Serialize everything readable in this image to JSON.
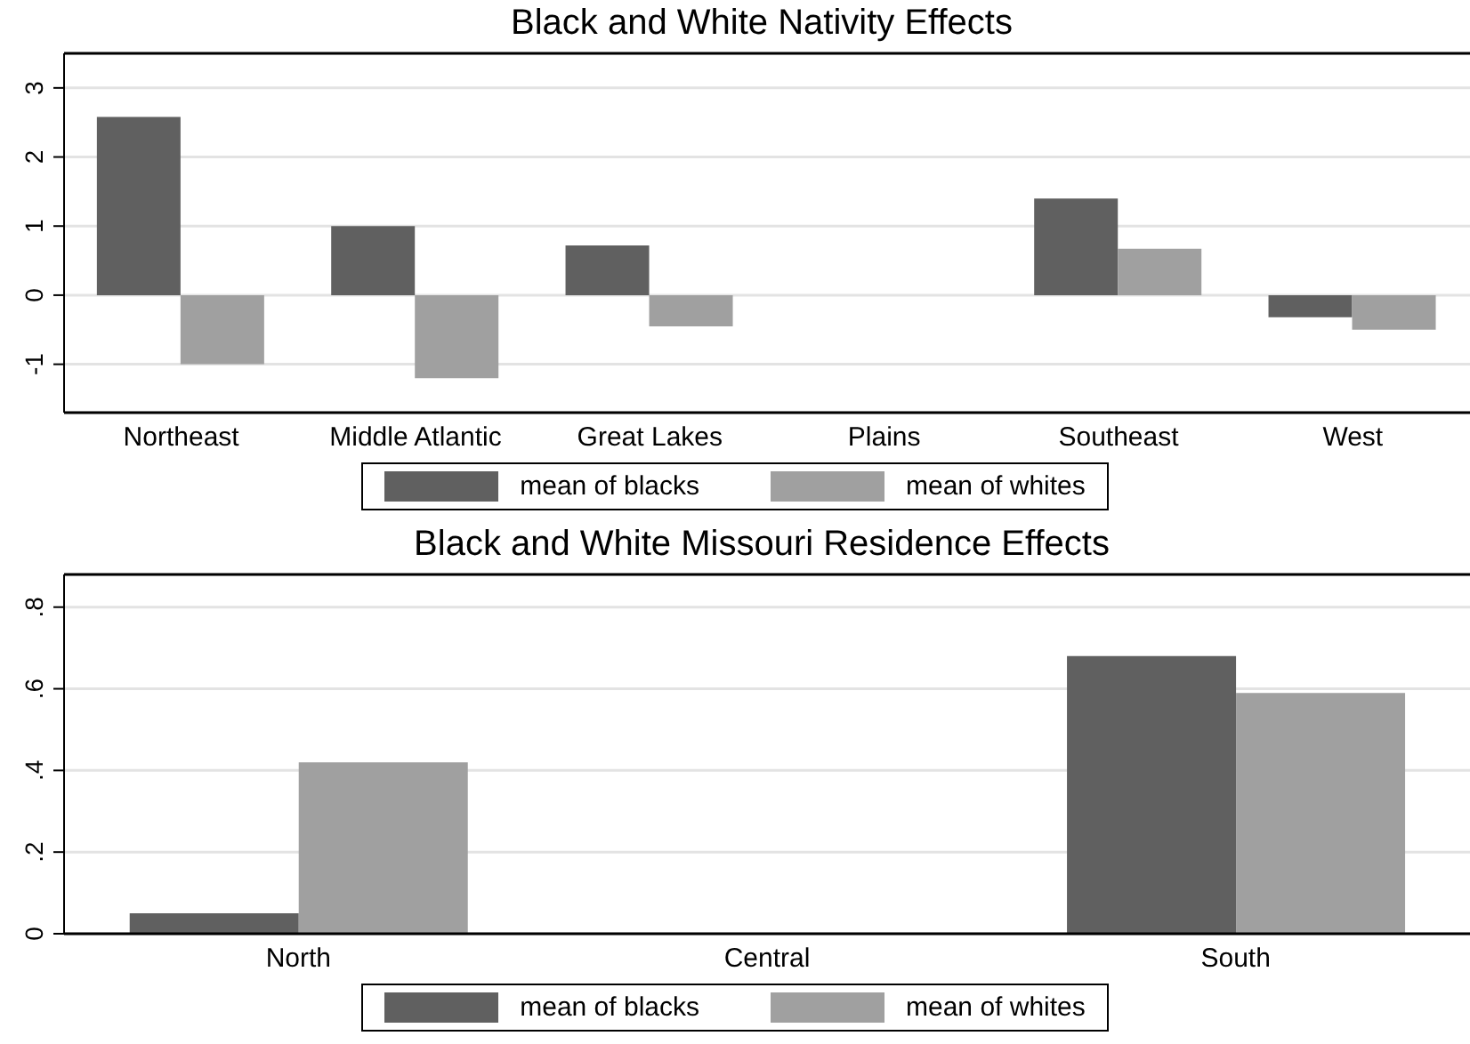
{
  "chart_data": [
    {
      "type": "bar",
      "title": "Black and White Nativity Effects",
      "categories": [
        "Northeast",
        "Middle Atlantic",
        "Great Lakes",
        "Plains",
        "Southeast",
        "West"
      ],
      "series": [
        {
          "name": "mean of blacks",
          "color": "#606060",
          "values": [
            2.58,
            1.0,
            0.72,
            null,
            1.4,
            -0.32
          ]
        },
        {
          "name": "mean of whites",
          "color": "#a0a0a0",
          "values": [
            -1.0,
            -1.2,
            -0.45,
            null,
            0.67,
            -0.5
          ]
        }
      ],
      "ylim": [
        -1.7,
        3.5
      ],
      "yticks": [
        -1,
        0,
        1,
        2,
        3
      ],
      "grid": "y",
      "legend": "bottom"
    },
    {
      "type": "bar",
      "title": "Black and White Missouri Residence Effects",
      "categories": [
        "North",
        "Central",
        "South"
      ],
      "series": [
        {
          "name": "mean of blacks",
          "color": "#606060",
          "values": [
            0.05,
            null,
            0.68
          ]
        },
        {
          "name": "mean of whites",
          "color": "#a0a0a0",
          "values": [
            0.42,
            null,
            0.59
          ]
        }
      ],
      "ylim": [
        0,
        0.88
      ],
      "yticks": [
        0,
        {
          "value": 0.2,
          "label": ".2"
        },
        {
          "value": 0.4,
          "label": ".4"
        },
        {
          "value": 0.6,
          "label": ".6"
        },
        {
          "value": 0.8,
          "label": ".8"
        }
      ],
      "grid": "y",
      "legend": "bottom"
    }
  ]
}
